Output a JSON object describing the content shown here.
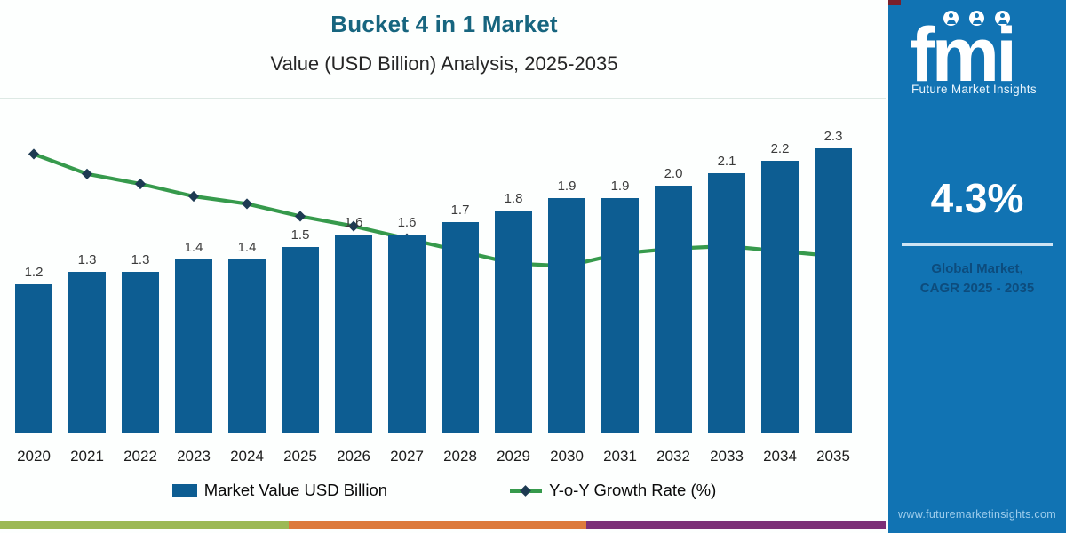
{
  "header": {
    "title": "Bucket 4 in 1 Market",
    "subtitle": "Value (USD Billion) Analysis, 2025-2035"
  },
  "chart_data": {
    "type": "bar",
    "title": "Bucket 4 in 1 Market",
    "subtitle": "Value (USD Billion) Analysis, 2025-2035",
    "categories": [
      "2020",
      "2021",
      "2022",
      "2023",
      "2024",
      "2025",
      "2026",
      "2027",
      "2028",
      "2029",
      "2030",
      "2031",
      "2032",
      "2033",
      "2034",
      "2035"
    ],
    "series": [
      {
        "name": "Market Value USD Billion",
        "type": "bar",
        "color": "#0d5d92",
        "values": [
          1.2,
          1.3,
          1.3,
          1.4,
          1.4,
          1.5,
          1.6,
          1.6,
          1.7,
          1.8,
          1.9,
          1.9,
          2.0,
          2.1,
          2.2,
          2.3
        ]
      },
      {
        "name": "Y-o-Y Growth Rate (%)",
        "type": "line",
        "color": "#369a4c",
        "marker": "diamond",
        "marker_color": "#1d3a52",
        "values_estimated": true,
        "values": [
          8.2,
          7.4,
          7.0,
          6.5,
          6.2,
          5.7,
          5.3,
          4.8,
          4.3,
          3.8,
          3.7,
          4.2,
          4.4,
          4.5,
          4.3,
          4.1
        ]
      }
    ],
    "ylim": [
      0,
      2.5
    ],
    "line_axis_range": [
      3.5,
      8.5
    ],
    "grid": false,
    "bar_value_labels": true,
    "legend_position": "bottom"
  },
  "legend": {
    "items": [
      {
        "label": "Market Value USD Billion",
        "marker": "square",
        "color": "#0d5d92"
      },
      {
        "label": "Y-o-Y Growth Rate (%)",
        "marker": "line-diamond",
        "color": "#369a4c"
      }
    ]
  },
  "sidebar": {
    "logo_text": "fmi",
    "logo_tagline": "Future Market Insights",
    "stat_value": "4.3%",
    "stat_caption_1": "Global Market,",
    "stat_caption_2": "CAGR 2025 - 2035",
    "website": "www.futuremarketinsights.com",
    "bg_color": "#1173b3"
  },
  "footer_strip_colors": [
    "#9cb954",
    "#dd7a3c",
    "#7c2f77"
  ]
}
